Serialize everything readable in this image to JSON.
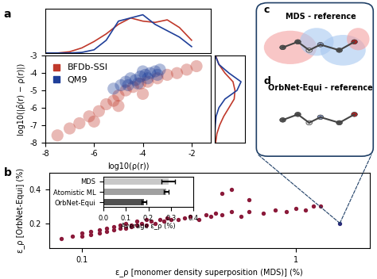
{
  "chart_data": [
    {
      "type": "scatter",
      "xlabel": "log10(ρ(r))",
      "ylabel": "log10(|ρ̂(r) − ρ(r)|)",
      "xlim": [
        -8,
        -1.2
      ],
      "xticks": [
        -8,
        -6,
        -4,
        -2
      ],
      "ylim": [
        -8,
        -3
      ],
      "yticks": [
        -8,
        -7,
        -6,
        -5,
        -4,
        -3
      ],
      "legend": "upper left",
      "series": [
        {
          "name": "BFDb-SSI",
          "color": "#c0392b",
          "x": [
            -7.5,
            -7.0,
            -6.6,
            -6.2,
            -5.8,
            -5.5,
            -5.2,
            -5.0,
            -4.7,
            -4.4,
            -4.1,
            -3.8,
            -3.4,
            -3.0,
            -2.6,
            -2.2,
            -1.8,
            -6.0,
            -5.0,
            -4.0
          ],
          "y": [
            -7.6,
            -7.2,
            -6.9,
            -6.5,
            -6.2,
            -5.8,
            -5.6,
            -5.3,
            -5.0,
            -4.8,
            -4.6,
            -4.5,
            -4.3,
            -4.1,
            -4.0,
            -3.8,
            -3.6,
            -6.8,
            -5.9,
            -5.2
          ]
        },
        {
          "name": "QM9",
          "color": "#1f3f99",
          "x": [
            -5.2,
            -4.9,
            -4.7,
            -4.5,
            -4.3,
            -4.1,
            -3.9,
            -3.7,
            -3.5,
            -3.3,
            -4.6,
            -4.2,
            -3.8,
            -4.0,
            -3.4
          ],
          "y": [
            -4.9,
            -4.7,
            -4.5,
            -4.3,
            -4.4,
            -4.2,
            -4.1,
            -4.0,
            -3.9,
            -3.8,
            -4.7,
            -4.6,
            -4.3,
            -3.9,
            -4.1
          ]
        }
      ]
    },
    {
      "type": "line",
      "tick_labels": false,
      "xlim": [
        -8,
        -1.2
      ],
      "ylim": [
        0,
        0.7
      ],
      "x": [
        -8,
        -7.5,
        -7,
        -6.5,
        -6,
        -5.5,
        -5,
        -4.5,
        -4,
        -3.5,
        -3,
        -2.5,
        -2
      ],
      "series": [
        {
          "name": "BFDb-SSI",
          "color": "#c0392b",
          "values": [
            0,
            0,
            0.02,
            0.08,
            0.18,
            0.3,
            0.45,
            0.55,
            0.5,
            0.48,
            0.52,
            0.4,
            0.2
          ]
        },
        {
          "name": "QM9",
          "color": "#1f3f99",
          "values": [
            0,
            0,
            0,
            0.01,
            0.05,
            0.2,
            0.5,
            0.55,
            0.6,
            0.45,
            0.35,
            0.25,
            0.1
          ]
        }
      ]
    },
    {
      "type": "line",
      "orientation": "horizontal",
      "tick_labels": false,
      "xlim": [
        0,
        0.75
      ],
      "ylim": [
        -8,
        -3
      ],
      "y": [
        -8,
        -7.5,
        -7,
        -6.5,
        -6,
        -5.5,
        -5,
        -4.5,
        -4,
        -3.5,
        -3
      ],
      "series": [
        {
          "name": "BFDb-SSI",
          "color": "#c0392b",
          "values": [
            0.02,
            0.05,
            0.12,
            0.22,
            0.35,
            0.48,
            0.5,
            0.45,
            0.25,
            0.1,
            0.02
          ]
        },
        {
          "name": "QM9",
          "color": "#1f3f99",
          "values": [
            0,
            0,
            0.01,
            0.03,
            0.1,
            0.25,
            0.55,
            0.65,
            0.35,
            0.1,
            0.01
          ]
        }
      ]
    },
    {
      "type": "scatter",
      "log": "x",
      "xlabel": "ε_ρ [monomer density superposition (MDS)] (%)",
      "ylabel": "ε_ρ [OrbNet-Equi] (%)",
      "xlim": [
        0.07,
        2.2
      ],
      "xticks": [
        0.1,
        1
      ],
      "ylim": [
        0.05,
        0.5
      ],
      "yticks": [
        0.2,
        0.4
      ],
      "series": [
        {
          "color": "#8b1a3a",
          "x": [
            0.08,
            0.09,
            0.1,
            0.1,
            0.11,
            0.11,
            0.12,
            0.12,
            0.13,
            0.13,
            0.14,
            0.14,
            0.15,
            0.15,
            0.16,
            0.16,
            0.17,
            0.17,
            0.18,
            0.18,
            0.19,
            0.2,
            0.2,
            0.21,
            0.22,
            0.23,
            0.24,
            0.25,
            0.26,
            0.28,
            0.3,
            0.32,
            0.35,
            0.38,
            0.4,
            0.42,
            0.45,
            0.5,
            0.55,
            0.6,
            0.7,
            0.8,
            0.9,
            1.0,
            1.1,
            1.2,
            1.3,
            0.45,
            0.5,
            0.6
          ],
          "y": [
            0.11,
            0.12,
            0.12,
            0.14,
            0.13,
            0.15,
            0.14,
            0.16,
            0.15,
            0.17,
            0.16,
            0.18,
            0.17,
            0.19,
            0.17,
            0.2,
            0.18,
            0.19,
            0.19,
            0.21,
            0.2,
            0.19,
            0.22,
            0.21,
            0.2,
            0.22,
            0.21,
            0.23,
            0.22,
            0.22,
            0.23,
            0.24,
            0.22,
            0.25,
            0.24,
            0.26,
            0.25,
            0.27,
            0.24,
            0.27,
            0.26,
            0.28,
            0.27,
            0.29,
            0.28,
            0.3,
            0.3,
            0.38,
            0.4,
            0.34
          ]
        },
        {
          "color": "#2a2a7a",
          "x": [
            1.6
          ],
          "y": [
            0.2
          ]
        }
      ]
    },
    {
      "type": "bar",
      "orientation": "horizontal",
      "xlabel": "Average ε_ρ (%)",
      "categories": [
        "MDS",
        "Atomistic ML",
        "OrbNet-Equi"
      ],
      "values": [
        0.29,
        0.28,
        0.18
      ],
      "errors": [
        0.03,
        0.01,
        0.01
      ],
      "colors": [
        "#c8c8c8",
        "#a0a0a0",
        "#505050"
      ],
      "xlim": [
        0,
        0.4
      ],
      "xticks": [
        0.0,
        0.1,
        0.2,
        0.3,
        0.4
      ]
    }
  ],
  "panel_labels": [
    "a",
    "b",
    "c",
    "d"
  ],
  "diagram": {
    "c": "MDS - reference",
    "d": "OrbNet-Equi - reference"
  }
}
